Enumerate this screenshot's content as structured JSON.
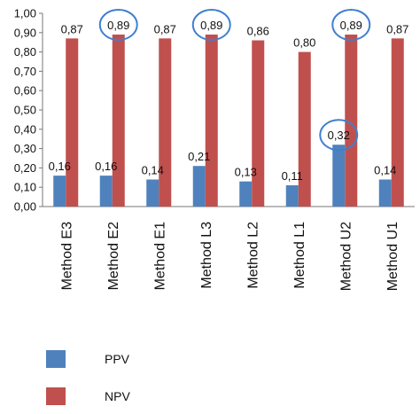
{
  "chart_data": {
    "type": "bar",
    "categories": [
      "Method E3",
      "Method E2",
      "Method E1",
      "Method L3",
      "Method L2",
      "Method L1",
      "Method U2",
      "Method U1"
    ],
    "series": [
      {
        "name": "PPV",
        "color": "#4f81bd",
        "values": [
          0.16,
          0.16,
          0.14,
          0.21,
          0.13,
          0.11,
          0.32,
          0.14
        ],
        "labels": [
          "0,16",
          "0,16",
          "0,14",
          "0,21",
          "0,13",
          "0,11",
          "0,32",
          "0,14"
        ]
      },
      {
        "name": "NPV",
        "color": "#c0504d",
        "values": [
          0.87,
          0.89,
          0.87,
          0.89,
          0.86,
          0.8,
          0.89,
          0.87
        ],
        "labels": [
          "0,87",
          "0,89",
          "0,87",
          "0,89",
          "0,86",
          "0,80",
          "0,89",
          "0,87"
        ]
      }
    ],
    "ylim": [
      0,
      1
    ],
    "yticks": [
      0,
      0.1,
      0.2,
      0.3,
      0.4,
      0.5,
      0.6,
      0.7,
      0.8,
      0.9,
      1.0
    ],
    "ytick_labels": [
      "0,00",
      "0,10",
      "0,20",
      "0,30",
      "0,40",
      "0,50",
      "0,60",
      "0,70",
      "0,80",
      "0,90",
      "1,00"
    ],
    "grid": false,
    "legend": "bottom",
    "highlight_color": "#3f7fd0",
    "highlights": [
      {
        "category_index": 1,
        "series": 1
      },
      {
        "category_index": 3,
        "series": 1
      },
      {
        "category_index": 6,
        "series": 0
      },
      {
        "category_index": 6,
        "series": 1
      }
    ]
  }
}
